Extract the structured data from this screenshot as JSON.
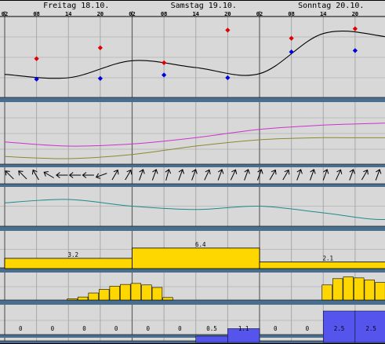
{
  "days": [
    {
      "label": "Freitag 18.10."
    },
    {
      "label": "Samstag 19.10."
    },
    {
      "label": "Sonntag 20.10."
    }
  ],
  "hour_ticks": [
    "02",
    "08",
    "14",
    "20",
    "02",
    "08",
    "14",
    "20",
    "02",
    "08",
    "14",
    "20"
  ],
  "colors": {
    "background": "#d8d8d8",
    "grid": "#000000",
    "separator": "#4a6f8e",
    "day_line": "#606060",
    "six_hour_line": "#a8a8a8",
    "temp_line": "#000000",
    "temp_max": "#e00000",
    "temp_min": "#0000e0",
    "dew_line": "#cc33cc",
    "olive_line": "#8a8a30",
    "teal_line": "#208a8a",
    "daily_bar": "#ffd700",
    "hourly_bar": "#ffd700",
    "precip_bar": "#5555ee"
  },
  "chart_data": [
    {
      "type": "line",
      "panel": "temperature",
      "x_hours": [
        0,
        12,
        24,
        36,
        48,
        60,
        72,
        84,
        96,
        108,
        120,
        132,
        144
      ],
      "series": [
        {
          "values": [
            6.5,
            6.0,
            8.5,
            7.5,
            6.6,
            12.5,
            12.0,
            10.0,
            10.6,
            14.0,
            11.5,
            10.0,
            9.0
          ]
        }
      ],
      "extremes": [
        {
          "hour": 6,
          "max": 8.8,
          "min": 5.8
        },
        {
          "hour": 18,
          "max": 10.4,
          "min": 5.9
        },
        {
          "hour": 30,
          "max": 8.2,
          "min": 6.4
        },
        {
          "hour": 42,
          "max": 13.0,
          "min": 6.0
        },
        {
          "hour": 54,
          "max": 11.8,
          "min": 9.8
        },
        {
          "hour": 66,
          "max": 13.2,
          "min": 10.0
        }
      ],
      "ylim": [
        3,
        15
      ]
    },
    {
      "type": "line",
      "panel": "pressure",
      "x_hours": [
        0,
        6,
        12,
        18,
        24,
        30,
        36,
        42,
        48,
        54,
        60,
        66,
        72
      ],
      "series": [
        {
          "name_hint": "magenta",
          "values": [
            1011,
            1009,
            1010,
            1013,
            1017,
            1019,
            1020,
            1021,
            1022,
            1020,
            1021,
            1022,
            1021
          ]
        },
        {
          "name_hint": "olive",
          "values": [
            1004,
            1003,
            1005,
            1009,
            1012,
            1013,
            1013,
            1014,
            1013,
            1013,
            1013,
            1012,
            1012
          ]
        }
      ],
      "ylim": [
        1000,
        1030
      ]
    },
    {
      "type": "table",
      "panel": "wind-direction",
      "arrows_deg": [
        315,
        315,
        330,
        300,
        270,
        270,
        270,
        250,
        30,
        30,
        20,
        20,
        15,
        20,
        20,
        25,
        20,
        25,
        20,
        20,
        30,
        30,
        20,
        20,
        20,
        25,
        20,
        30,
        20
      ]
    },
    {
      "type": "line",
      "panel": "wind-speed",
      "x_hours": [
        0,
        6,
        12,
        18,
        24,
        30,
        36,
        42,
        48,
        54,
        60,
        66,
        72
      ],
      "series": [
        {
          "values": [
            7,
            8,
            6,
            5,
            6,
            4,
            2,
            5,
            7,
            6,
            4,
            5,
            6
          ]
        }
      ],
      "ylim": [
        0,
        12
      ]
    },
    {
      "type": "bar",
      "panel": "sunshine-daily",
      "categories": [
        "Freitag 18.10.",
        "Samstag 19.10.",
        "Sonntag 20.10."
      ],
      "labels": [
        "3.2",
        "6.4",
        "2.1"
      ],
      "values": [
        3.2,
        6.4,
        2.1
      ],
      "ylim": [
        0,
        12
      ]
    },
    {
      "type": "bar",
      "panel": "sunshine-hourly",
      "x_hours": [
        6,
        7,
        8,
        9,
        10,
        11,
        12,
        13,
        14,
        15,
        30,
        31,
        32,
        33,
        34,
        35,
        36,
        37,
        38,
        39,
        40,
        54,
        55,
        56,
        57,
        58,
        59,
        60,
        61,
        62,
        63,
        64
      ],
      "values": [
        0.05,
        0.12,
        0.28,
        0.42,
        0.55,
        0.62,
        0.66,
        0.6,
        0.5,
        0.1,
        0.6,
        0.85,
        0.92,
        0.88,
        0.8,
        0.7,
        0.55,
        0.4,
        0.25,
        0.1,
        0.05,
        0.05,
        0.12,
        0.22,
        0.32,
        0.38,
        0.42,
        0.36,
        0.05,
        0.12,
        0.05,
        0.02
      ],
      "ylim": [
        0,
        1
      ]
    },
    {
      "type": "bar",
      "panel": "precipitation",
      "labels": [
        "0",
        "0",
        "0",
        "0",
        "0",
        "0",
        "0.5",
        "1.1",
        "0",
        "0",
        "2.5",
        "2.5"
      ],
      "values": [
        0,
        0,
        0,
        0,
        0,
        0,
        0.5,
        1.1,
        0,
        0,
        2.5,
        2.5
      ],
      "ylim": [
        0,
        3
      ]
    }
  ]
}
